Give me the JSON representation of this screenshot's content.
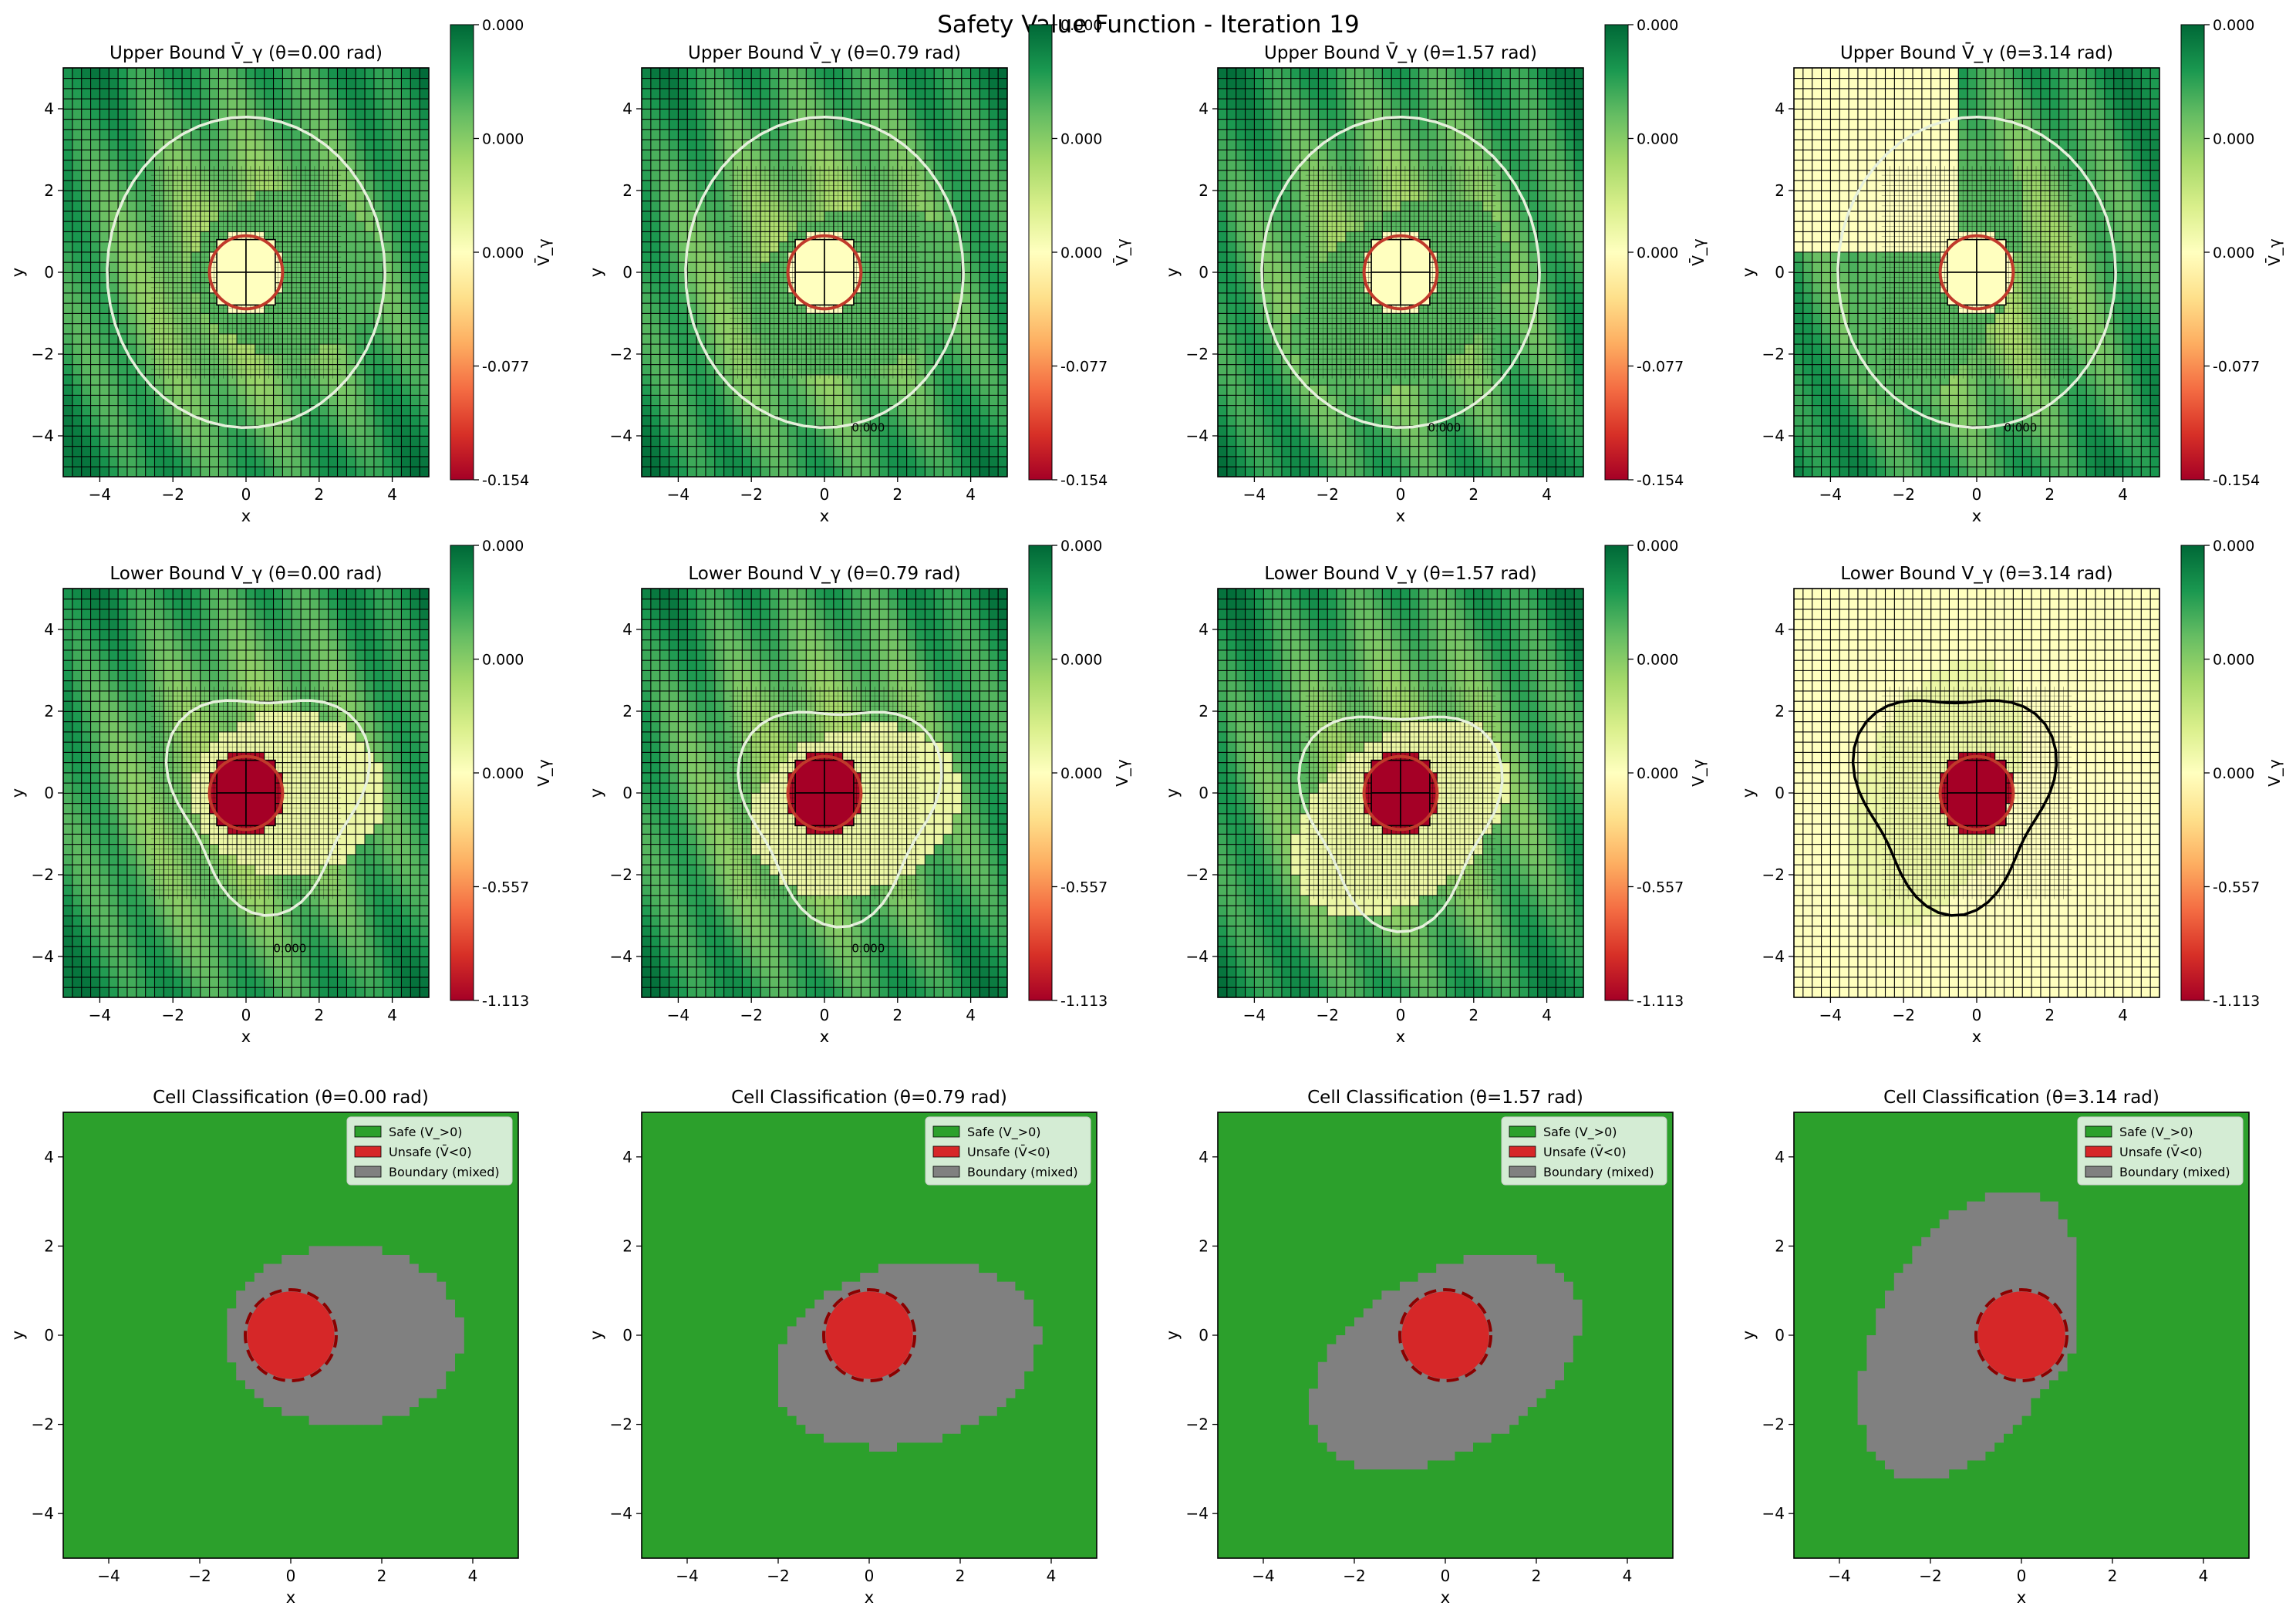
{
  "figure": {
    "title": "Safety Value Function - Iteration 19"
  },
  "colors": {
    "safe": "#2ca02c",
    "unsafe": "#d62728",
    "boundary": "#808080",
    "obstacle_ring": "#8b0000",
    "rdylgn_ramp": [
      "#a50026",
      "#d73027",
      "#f46d43",
      "#fdae61",
      "#fee08b",
      "#ffffbf",
      "#d9ef8b",
      "#a6d96a",
      "#66bd63",
      "#1a9850",
      "#006837"
    ]
  },
  "chart_data": [
    {
      "type": "heatmap",
      "row": 0,
      "col": 0,
      "title": "Upper Bound V̄_γ (θ=0.00 rad)",
      "xlabel": "x",
      "ylabel": "y",
      "xlim": [
        -5,
        5
      ],
      "ylim": [
        -5,
        5
      ],
      "xticks": [
        -4,
        -2,
        0,
        2,
        4
      ],
      "yticks": [
        -4,
        -2,
        0,
        2,
        4
      ],
      "colorbar": {
        "label": "V̄_γ",
        "ticks": [
          "0.000",
          "0.000",
          "0.000",
          "-0.077",
          "-0.154"
        ],
        "vmin": -0.154,
        "vmax": 0.0
      },
      "contour_label": "",
      "theta": 0.0
    },
    {
      "type": "heatmap",
      "row": 0,
      "col": 1,
      "title": "Upper Bound V̄_γ (θ=0.79 rad)",
      "xlabel": "x",
      "ylabel": "y",
      "xlim": [
        -5,
        5
      ],
      "ylim": [
        -5,
        5
      ],
      "xticks": [
        -4,
        -2,
        0,
        2,
        4
      ],
      "yticks": [
        -4,
        -2,
        0,
        2,
        4
      ],
      "colorbar": {
        "label": "V̄_γ",
        "ticks": [
          "0.000",
          "0.000",
          "0.000",
          "-0.077",
          "-0.154"
        ],
        "vmin": -0.154,
        "vmax": 0.0
      },
      "contour_label": "0.000",
      "theta": 0.79
    },
    {
      "type": "heatmap",
      "row": 0,
      "col": 2,
      "title": "Upper Bound V̄_γ (θ=1.57 rad)",
      "xlabel": "x",
      "ylabel": "y",
      "xlim": [
        -5,
        5
      ],
      "ylim": [
        -5,
        5
      ],
      "xticks": [
        -4,
        -2,
        0,
        2,
        4
      ],
      "yticks": [
        -4,
        -2,
        0,
        2,
        4
      ],
      "colorbar": {
        "label": "V̄_γ",
        "ticks": [
          "0.000",
          "0.000",
          "0.000",
          "-0.077",
          "-0.154"
        ],
        "vmin": -0.154,
        "vmax": 0.0
      },
      "contour_label": "0.000",
      "theta": 1.57
    },
    {
      "type": "heatmap",
      "row": 0,
      "col": 3,
      "title": "Upper Bound V̄_γ (θ=3.14 rad)",
      "xlabel": "x",
      "ylabel": "y",
      "xlim": [
        -5,
        5
      ],
      "ylim": [
        -5,
        5
      ],
      "xticks": [
        -4,
        -2,
        0,
        2,
        4
      ],
      "yticks": [
        -4,
        -2,
        0,
        2,
        4
      ],
      "colorbar": {
        "label": "V̄_γ",
        "ticks": [
          "0.000",
          "0.000",
          "0.000",
          "-0.077",
          "-0.154"
        ],
        "vmin": -0.154,
        "vmax": 0.0
      },
      "contour_label": "0.000",
      "theta": 3.14
    },
    {
      "type": "heatmap",
      "row": 1,
      "col": 0,
      "title": "Lower Bound V_γ (θ=0.00 rad)",
      "xlabel": "x",
      "ylabel": "y",
      "xlim": [
        -5,
        5
      ],
      "ylim": [
        -5,
        5
      ],
      "xticks": [
        -4,
        -2,
        0,
        2,
        4
      ],
      "yticks": [
        -4,
        -2,
        0,
        2,
        4
      ],
      "colorbar": {
        "label": "V_γ",
        "ticks": [
          "0.000",
          "0.000",
          "0.000",
          "-0.557",
          "-1.113"
        ],
        "vmin": -1.113,
        "vmax": 0.0
      },
      "contour_label": "0.000",
      "theta": 0.0
    },
    {
      "type": "heatmap",
      "row": 1,
      "col": 1,
      "title": "Lower Bound V_γ (θ=0.79 rad)",
      "xlabel": "x",
      "ylabel": "y",
      "xlim": [
        -5,
        5
      ],
      "ylim": [
        -5,
        5
      ],
      "xticks": [
        -4,
        -2,
        0,
        2,
        4
      ],
      "yticks": [
        -4,
        -2,
        0,
        2,
        4
      ],
      "colorbar": {
        "label": "V_γ",
        "ticks": [
          "0.000",
          "0.000",
          "0.000",
          "-0.557",
          "-1.113"
        ],
        "vmin": -1.113,
        "vmax": 0.0
      },
      "contour_label": "0.000",
      "theta": 0.79
    },
    {
      "type": "heatmap",
      "row": 1,
      "col": 2,
      "title": "Lower Bound V_γ (θ=1.57 rad)",
      "xlabel": "x",
      "ylabel": "y",
      "xlim": [
        -5,
        5
      ],
      "ylim": [
        -5,
        5
      ],
      "xticks": [
        -4,
        -2,
        0,
        2,
        4
      ],
      "yticks": [
        -4,
        -2,
        0,
        2,
        4
      ],
      "colorbar": {
        "label": "V_γ",
        "ticks": [
          "0.000",
          "0.000",
          "0.000",
          "-0.557",
          "-1.113"
        ],
        "vmin": -1.113,
        "vmax": 0.0
      },
      "contour_label": "",
      "theta": 1.57
    },
    {
      "type": "heatmap",
      "row": 1,
      "col": 3,
      "title": "Lower Bound V_γ (θ=3.14 rad)",
      "xlabel": "x",
      "ylabel": "y",
      "xlim": [
        -5,
        5
      ],
      "ylim": [
        -5,
        5
      ],
      "xticks": [
        -4,
        -2,
        0,
        2,
        4
      ],
      "yticks": [
        -4,
        -2,
        0,
        2,
        4
      ],
      "colorbar": {
        "label": "V_γ",
        "ticks": [
          "0.000",
          "0.000",
          "0.000",
          "-0.557",
          "-1.113"
        ],
        "vmin": -1.113,
        "vmax": 0.0
      },
      "contour_label": "",
      "theta": 3.14
    },
    {
      "type": "heatmap",
      "row": 2,
      "col": 0,
      "title": "Cell Classification (θ=0.00 rad)",
      "xlabel": "x",
      "ylabel": "y",
      "xlim": [
        -5,
        5
      ],
      "ylim": [
        -5,
        5
      ],
      "xticks": [
        -4,
        -2,
        0,
        2,
        4
      ],
      "yticks": [
        -4,
        -2,
        0,
        2,
        4
      ],
      "legend": {
        "position": "upper right",
        "entries": [
          "Safe (V_>0)",
          "Unsafe (V̄<0)",
          "Boundary (mixed)"
        ]
      },
      "obstacle": {
        "center": [
          0,
          0
        ],
        "radius": 1.0
      },
      "theta": 0.0
    },
    {
      "type": "heatmap",
      "row": 2,
      "col": 1,
      "title": "Cell Classification (θ=0.79 rad)",
      "xlabel": "x",
      "ylabel": "y",
      "xlim": [
        -5,
        5
      ],
      "ylim": [
        -5,
        5
      ],
      "xticks": [
        -4,
        -2,
        0,
        2,
        4
      ],
      "yticks": [
        -4,
        -2,
        0,
        2,
        4
      ],
      "legend": {
        "position": "upper right",
        "entries": [
          "Safe (V_>0)",
          "Unsafe (V̄<0)",
          "Boundary (mixed)"
        ]
      },
      "obstacle": {
        "center": [
          0,
          0
        ],
        "radius": 1.0
      },
      "theta": 0.79
    },
    {
      "type": "heatmap",
      "row": 2,
      "col": 2,
      "title": "Cell Classification (θ=1.57 rad)",
      "xlabel": "x",
      "ylabel": "y",
      "xlim": [
        -5,
        5
      ],
      "ylim": [
        -5,
        5
      ],
      "xticks": [
        -4,
        -2,
        0,
        2,
        4
      ],
      "yticks": [
        -4,
        -2,
        0,
        2,
        4
      ],
      "legend": {
        "position": "upper right",
        "entries": [
          "Safe (V_>0)",
          "Unsafe (V̄<0)",
          "Boundary (mixed)"
        ]
      },
      "obstacle": {
        "center": [
          0,
          0
        ],
        "radius": 1.0
      },
      "theta": 1.57
    },
    {
      "type": "heatmap",
      "row": 2,
      "col": 3,
      "title": "Cell Classification (θ=3.14 rad)",
      "xlabel": "x",
      "ylabel": "y",
      "xlim": [
        -5,
        5
      ],
      "ylim": [
        -5,
        5
      ],
      "xticks": [
        -4,
        -2,
        0,
        2,
        4
      ],
      "yticks": [
        -4,
        -2,
        0,
        2,
        4
      ],
      "legend": {
        "position": "upper right",
        "entries": [
          "Safe (V_>0)",
          "Unsafe (V̄<0)",
          "Boundary (mixed)"
        ]
      },
      "obstacle": {
        "center": [
          0,
          0
        ],
        "radius": 1.0
      },
      "theta": 3.14
    }
  ]
}
